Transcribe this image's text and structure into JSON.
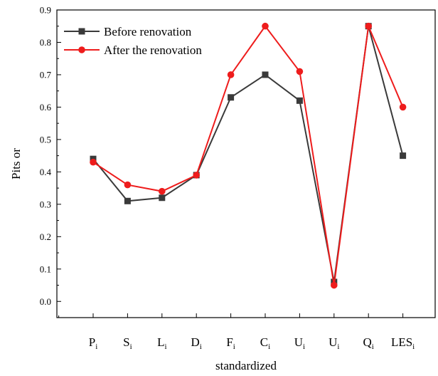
{
  "chart_data": {
    "type": "line",
    "title": "",
    "xlabel": "standardized",
    "ylabel": "Pits or",
    "ylim": [
      -0.05,
      0.9
    ],
    "yticks": [
      "0.0",
      "0.1",
      "0.2",
      "0.3",
      "0.4",
      "0.5",
      "0.6",
      "0.7",
      "0.8",
      "0.9"
    ],
    "categories": [
      {
        "main": "P",
        "sub": "i"
      },
      {
        "main": "S",
        "sub": "i"
      },
      {
        "main": "L",
        "sub": "i"
      },
      {
        "main": "D",
        "sub": "i"
      },
      {
        "main": "F",
        "sub": "i"
      },
      {
        "main": "C",
        "sub": "i"
      },
      {
        "main": "U",
        "sub": "i"
      },
      {
        "main": "U",
        "sub": "i"
      },
      {
        "main": "Q",
        "sub": "i"
      },
      {
        "main": "LES",
        "sub": "i"
      }
    ],
    "series": [
      {
        "name": "Before renovation",
        "color": "#3a3a3a",
        "marker": "square",
        "values": [
          0.44,
          0.31,
          0.32,
          0.39,
          0.63,
          0.7,
          0.62,
          0.06,
          0.85,
          0.45
        ]
      },
      {
        "name": "After the renovation",
        "color": "#ee1c1c",
        "marker": "circle",
        "values": [
          0.43,
          0.36,
          0.34,
          0.39,
          0.7,
          0.85,
          0.71,
          0.05,
          0.85,
          0.6
        ]
      }
    ],
    "legend_position": "top-left",
    "grid": false
  }
}
